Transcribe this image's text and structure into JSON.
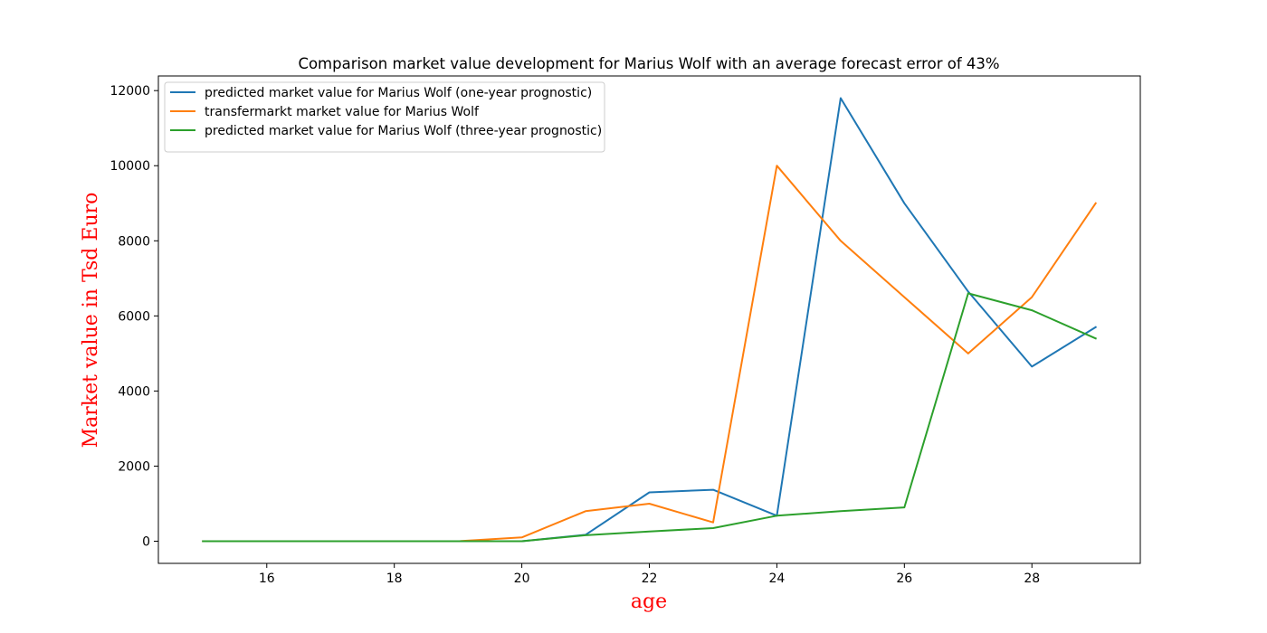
{
  "chart_data": {
    "type": "line",
    "title": "Comparison market value development for Marius Wolf with an average forecast error of 43%",
    "xlabel": "age",
    "ylabel": "Market value in Tsd Euro",
    "xlim": [
      14.3,
      29.7
    ],
    "ylim": [
      -590,
      12390
    ],
    "x_ticks": [
      16,
      18,
      20,
      22,
      24,
      26,
      28
    ],
    "y_ticks": [
      0,
      2000,
      4000,
      6000,
      8000,
      10000,
      12000
    ],
    "x": [
      15,
      16,
      17,
      18,
      19,
      20,
      21,
      22,
      23,
      24,
      25,
      26,
      27,
      28,
      29
    ],
    "grid": false,
    "legend_position": "top-left",
    "label_color": "#ff0000",
    "series": [
      {
        "name": "predicted market value for Marius Wolf (one-year prognostic)",
        "color": "#1f77b4",
        "values": [
          0,
          0,
          0,
          0,
          0,
          0,
          170,
          1300,
          1370,
          680,
          11800,
          9000,
          6650,
          4650,
          5700
        ]
      },
      {
        "name": "transfermarkt market value for Marius Wolf",
        "color": "#ff7f0e",
        "values": [
          0,
          0,
          0,
          0,
          0,
          100,
          800,
          1000,
          500,
          10000,
          8000,
          6500,
          5000,
          6500,
          9000
        ]
      },
      {
        "name": "predicted market value for Marius Wolf (three-year prognostic)",
        "color": "#2ca02c",
        "values": [
          0,
          0,
          0,
          0,
          0,
          0,
          160,
          260,
          350,
          680,
          800,
          900,
          6600,
          6150,
          5400
        ]
      }
    ]
  }
}
